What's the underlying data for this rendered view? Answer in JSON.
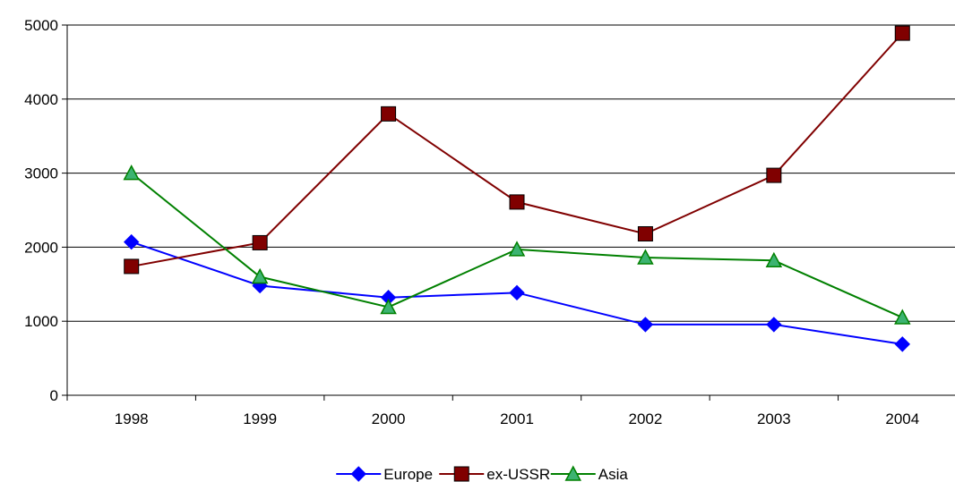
{
  "chart_data": {
    "type": "line",
    "categories": [
      "1998",
      "1999",
      "2000",
      "2001",
      "2002",
      "2003",
      "2004"
    ],
    "y_ticks": [
      "0",
      "1000",
      "2000",
      "3000",
      "4000",
      "5000"
    ],
    "ylim": [
      0,
      5000
    ],
    "grid": "horizontal",
    "legend_position": "bottom",
    "series": [
      {
        "name": "Europe",
        "color": "#0000ff",
        "marker": "diamond",
        "values": [
          2070,
          1480,
          1320,
          1385,
          955,
          955,
          690
        ]
      },
      {
        "name": "ex-USSR",
        "color": "#800000",
        "marker": "square",
        "values": [
          1740,
          2060,
          3800,
          2610,
          2180,
          2970,
          4890
        ]
      },
      {
        "name": "Asia",
        "color": "#008000",
        "marker": "triangle",
        "values": [
          3000,
          1600,
          1190,
          1970,
          1860,
          1820,
          1050
        ]
      }
    ]
  }
}
